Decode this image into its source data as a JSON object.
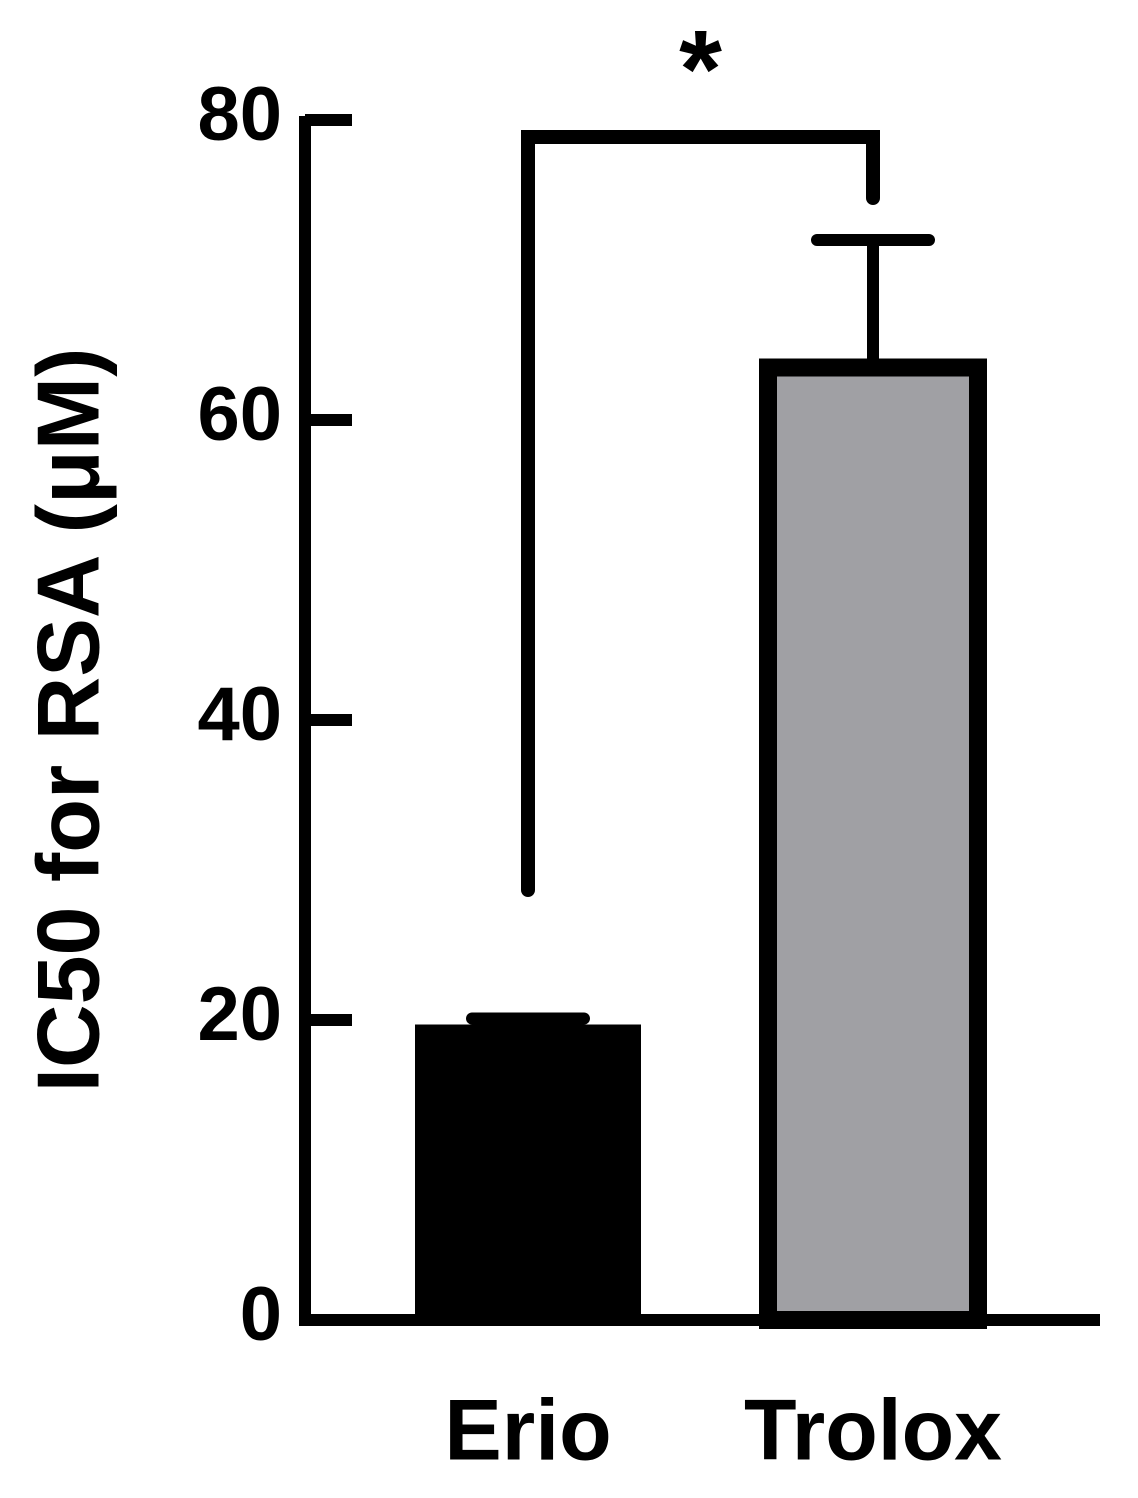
{
  "chart_data": {
    "type": "bar",
    "y_label": "IC50 for RSA (μM)",
    "categories": [
      "Erio",
      "Trolox"
    ],
    "series": [
      {
        "values": [
          19.7,
          63.5
        ],
        "errors": [
          0.4,
          8.5
        ],
        "colors": [
          "#000000",
          "#a0a0a4"
        ]
      }
    ],
    "ylim": [
      0,
      80
    ],
    "yticks": [
      0,
      20,
      40,
      60,
      80
    ],
    "annotation": "*"
  }
}
